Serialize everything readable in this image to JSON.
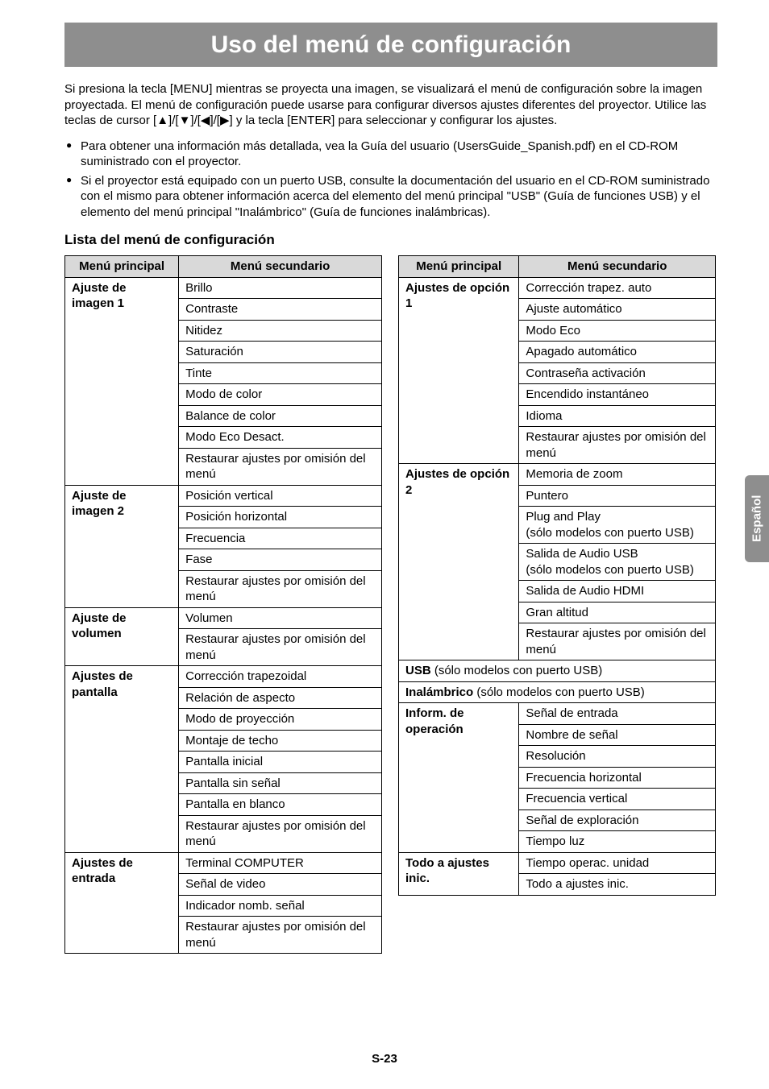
{
  "language_tab": "Español",
  "page_number": "S-23",
  "banner_title": "Uso del menú de configuración",
  "intro": "Si presiona la tecla [MENU] mientras se proyecta una imagen, se visualizará el menú de configuración sobre la imagen proyectada. El menú de configuración puede usarse para configurar diversos ajustes diferentes del proyector. Utilice las teclas de cursor [▲]/[▼]/[◀]/[▶] y la tecla [ENTER] para seleccionar y configurar los ajustes.",
  "bullets": [
    "Para obtener una información más detallada, vea la Guía del usuario (UsersGuide_Spanish.pdf) en el CD-ROM suministrado con el proyector.",
    "Si el proyector está equipado con un puerto USB, consulte la documentación del usuario en el CD-ROM suministrado con el mismo para obtener información acerca del elemento del menú principal \"USB\" (Guía de funciones USB) y el elemento del menú principal \"Inalámbrico\" (Guía de funciones inalámbricas)."
  ],
  "section_title": "Lista del menú de configuración",
  "headers": {
    "main": "Menú principal",
    "sub": "Menú secundario"
  },
  "left_table": [
    {
      "main": "Ajuste de imagen 1",
      "subs": [
        "Brillo",
        "Contraste",
        "Nitidez",
        "Saturación",
        "Tinte",
        "Modo de color",
        "Balance de color",
        "Modo Eco Desact.",
        "Restaurar ajustes por omisión del menú"
      ]
    },
    {
      "main": "Ajuste de imagen 2",
      "subs": [
        "Posición vertical",
        "Posición horizontal",
        "Frecuencia",
        "Fase",
        "Restaurar ajustes por omisión del menú"
      ]
    },
    {
      "main": "Ajuste de volumen",
      "subs": [
        "Volumen",
        "Restaurar ajustes por omisión del menú"
      ]
    },
    {
      "main": "Ajustes de pantalla",
      "subs": [
        "Corrección trapezoidal",
        "Relación de aspecto",
        "Modo de proyección",
        "Montaje de techo",
        "Pantalla inicial",
        "Pantalla sin señal",
        "Pantalla en blanco",
        "Restaurar ajustes por omisión del menú"
      ]
    },
    {
      "main": "Ajustes de entrada",
      "subs": [
        "Terminal COMPUTER",
        "Señal de video",
        "Indicador nomb. señal",
        "Restaurar ajustes por omisión del menú"
      ]
    }
  ],
  "right_table": [
    {
      "main": "Ajustes de opción 1",
      "subs": [
        "Corrección trapez. auto",
        "Ajuste automático",
        "Modo Eco",
        "Apagado automático",
        "Contraseña activación",
        "Encendido instantáneo",
        "Idioma",
        "Restaurar ajustes por omisión del menú"
      ]
    },
    {
      "main": "Ajustes de opción 2",
      "subs": [
        "Memoria de zoom",
        "Puntero",
        "Plug and Play\n(sólo modelos con puerto USB)",
        "Salida de Audio USB\n(sólo modelos con puerto USB)",
        "Salida de Audio HDMI",
        "Gran altitud",
        "Restaurar ajustes por omisión del menú"
      ]
    },
    {
      "full_bold": "USB",
      "full_rest": " (sólo modelos con puerto USB)"
    },
    {
      "full_bold": "Inalámbrico",
      "full_rest": " (sólo modelos con puerto USB)"
    },
    {
      "main": "Inform. de operación",
      "subs": [
        "Señal de entrada",
        "Nombre de señal",
        "Resolución",
        "Frecuencia horizontal",
        "Frecuencia vertical",
        "Señal de exploración",
        "Tiempo luz"
      ]
    },
    {
      "main": "Todo a ajustes inic.",
      "subs": [
        "Tiempo operac. unidad",
        "Todo a ajustes inic."
      ]
    }
  ]
}
